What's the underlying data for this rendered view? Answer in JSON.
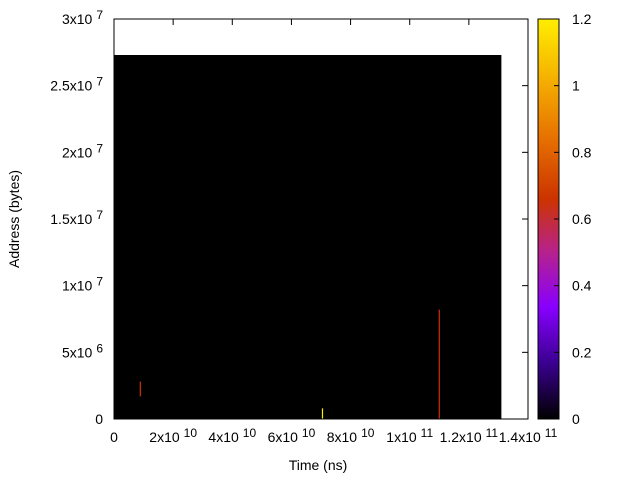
{
  "chart_data": {
    "type": "heatmap",
    "title": "",
    "xlabel": "Time (ns)",
    "ylabel": "Address (bytes)",
    "xlim": [
      0,
      140000000000
    ],
    "ylim": [
      0,
      30000000
    ],
    "grid": false,
    "x_ticks": [
      {
        "value": 0,
        "mantissa": "0",
        "exp": ""
      },
      {
        "value": 20000000000,
        "mantissa": "2x10",
        "exp": "10"
      },
      {
        "value": 40000000000,
        "mantissa": "4x10",
        "exp": "10"
      },
      {
        "value": 60000000000,
        "mantissa": "6x10",
        "exp": "10"
      },
      {
        "value": 80000000000,
        "mantissa": "8x10",
        "exp": "10"
      },
      {
        "value": 100000000000,
        "mantissa": "1x10",
        "exp": "11"
      },
      {
        "value": 120000000000,
        "mantissa": "1.2x10",
        "exp": "11"
      },
      {
        "value": 140000000000,
        "mantissa": "1.4x10",
        "exp": "11"
      }
    ],
    "y_ticks": [
      {
        "value": 0,
        "mantissa": "0",
        "exp": ""
      },
      {
        "value": 5000000,
        "mantissa": "5x10",
        "exp": "6"
      },
      {
        "value": 10000000,
        "mantissa": "1x10",
        "exp": "7"
      },
      {
        "value": 15000000,
        "mantissa": "1.5x10",
        "exp": "7"
      },
      {
        "value": 20000000,
        "mantissa": "2x10",
        "exp": "7"
      },
      {
        "value": 25000000,
        "mantissa": "2.5x10",
        "exp": "7"
      },
      {
        "value": 30000000,
        "mantissa": "3x10",
        "exp": "7"
      }
    ],
    "data_extent": {
      "x": [
        0,
        131000000000
      ],
      "y": [
        0,
        27300000
      ]
    },
    "background_value": 0,
    "highlights": [
      {
        "x": 8900000000,
        "y_range": [
          1700000,
          2800000
        ],
        "value": 0.7
      },
      {
        "x": 70500000000,
        "y_range": [
          0,
          800000
        ],
        "value": 1.2
      },
      {
        "x": 110000000000,
        "y_range": [
          0,
          8200000
        ],
        "value": 0.7
      }
    ],
    "colorbar": {
      "range": [
        0,
        1.2
      ],
      "ticks": [
        "0",
        "0.2",
        "0.4",
        "0.6",
        "0.8",
        "1",
        "1.2"
      ],
      "palette": [
        "#000000",
        "#3a0090",
        "#8800ff",
        "#b7228a",
        "#cc3300",
        "#e67000",
        "#f5b000",
        "#ffee00"
      ]
    }
  }
}
